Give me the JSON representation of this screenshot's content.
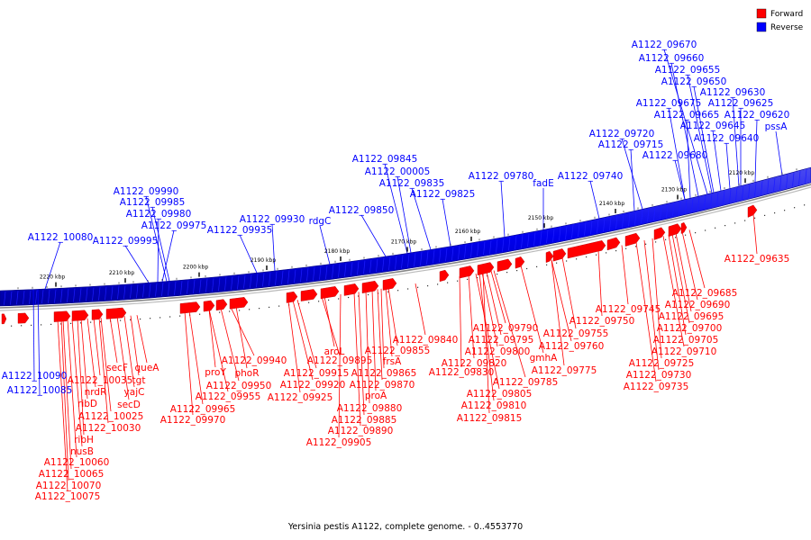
{
  "colors": {
    "forward": "#ff0000",
    "reverse": "#0000ff",
    "backbone": "#888888"
  },
  "legend": [
    {
      "key": "forward",
      "label": "Forward"
    },
    {
      "key": "reverse",
      "label": "Reverse"
    }
  ],
  "caption": "Yersinia pestis A1122, complete genome. - 0..4553770",
  "ticks": [
    "2120 kbp",
    "2130 kbp",
    "2140 kbp",
    "2150 kbp",
    "2160 kbp",
    "2170 kbp",
    "2180 kbp",
    "2190 kbp",
    "2200 kbp",
    "2210 kbp",
    "2220 kbp"
  ],
  "reverse_labels": [
    "A1122_09670",
    "A1122_09660",
    "A1122_09655",
    "A1122_09650",
    "A1122_09630",
    "A1122_09675",
    "A1122_09625",
    "A1122_09665",
    "A1122_09620",
    "A1122_09645",
    "pssA",
    "A1122_09720",
    "A1122_09640",
    "A1122_09715",
    "A1122_09680",
    "A1122_09740",
    "A1122_09780",
    "fadE",
    "A1122_09845",
    "A1122_00005",
    "A1122_09835",
    "A1122_09825",
    "A1122_09850",
    "rdgC",
    "A1122_09930",
    "A1122_09935",
    "A1122_09990",
    "A1122_09985",
    "A1122_09980",
    "A1122_09975",
    "A1122_09995",
    "A1122_10080",
    "A1122_10090",
    "A1122_10085"
  ],
  "forward_labels": [
    "A1122_09635",
    "A1122_09685",
    "A1122_09690",
    "A1122_09745",
    "A1122_09695",
    "A1122_09750",
    "A1122_09700",
    "A1122_09755",
    "A1122_09705",
    "A1122_09760",
    "A1122_09710",
    "A1122_09725",
    "A1122_09730",
    "A1122_09735",
    "A1122_09790",
    "A1122_09795",
    "A1122_09800",
    "gmhA",
    "A1122_09775",
    "A1122_09820",
    "A1122_09785",
    "A1122_09830",
    "A1122_09805",
    "A1122_09810",
    "A1122_09815",
    "A1122_09840",
    "aroL",
    "A1122_09855",
    "A1122_09895",
    "frsA",
    "A1122_09915",
    "A1122_09865",
    "A1122_09920",
    "A1122_09870",
    "A1122_09925",
    "proA",
    "A1122_09880",
    "A1122_09885",
    "A1122_09890",
    "A1122_09905",
    "A1122_09940",
    "proY",
    "phoR",
    "A1122_09950",
    "A1122_09955",
    "A1122_09965",
    "A1122_09970",
    "queA",
    "secF",
    "tgt",
    "A1122_10035",
    "yajC",
    "nrdR",
    "ribD",
    "secD",
    "A1122_10025",
    "A1122_10030",
    "ribH",
    "nusB",
    "A1122_10060",
    "A1122_10065",
    "A1122_10070",
    "A1122_10075"
  ]
}
